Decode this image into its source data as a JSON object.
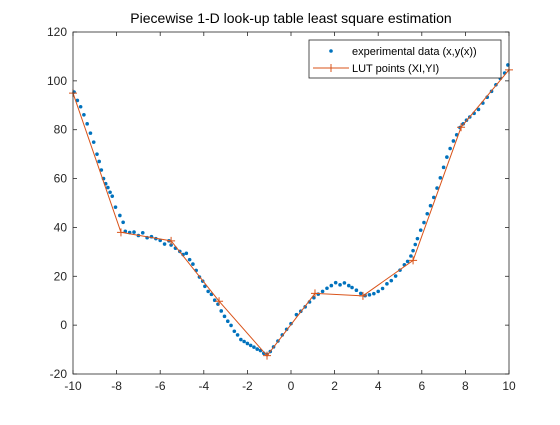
{
  "chart_data": {
    "type": "scatter",
    "title": "Piecewise 1-D look-up table least square estimation",
    "xlabel": "",
    "ylabel": "",
    "xlim": [
      -10,
      10
    ],
    "ylim": [
      -20,
      120
    ],
    "xticks": [
      -10,
      -8,
      -6,
      -4,
      -2,
      0,
      2,
      4,
      6,
      8,
      10
    ],
    "yticks": [
      -20,
      0,
      20,
      40,
      60,
      80,
      100,
      120
    ],
    "grid": false,
    "legend_position": "top-right",
    "series": [
      {
        "name": "experimental data (x,y(x))",
        "type": "scatter",
        "color": "#0072BD",
        "points": [
          [
            -9.95,
            95.4
          ],
          [
            -9.8,
            92.0
          ],
          [
            -9.65,
            89.4
          ],
          [
            -9.5,
            86.1
          ],
          [
            -9.35,
            82.4
          ],
          [
            -9.2,
            78.6
          ],
          [
            -9.05,
            74.9
          ],
          [
            -8.9,
            70.0
          ],
          [
            -8.8,
            67.0
          ],
          [
            -8.7,
            63.5
          ],
          [
            -8.6,
            60.0
          ],
          [
            -8.5,
            57.9
          ],
          [
            -8.4,
            56.3
          ],
          [
            -8.3,
            54.4
          ],
          [
            -8.2,
            52.8
          ],
          [
            -8.05,
            48.3
          ],
          [
            -7.85,
            44.9
          ],
          [
            -7.7,
            42.1
          ],
          [
            -7.6,
            38.4
          ],
          [
            -7.4,
            37.9
          ],
          [
            -7.2,
            38.1
          ],
          [
            -7.0,
            36.7
          ],
          [
            -6.8,
            37.8
          ],
          [
            -6.6,
            35.8
          ],
          [
            -6.4,
            36.2
          ],
          [
            -6.2,
            35.4
          ],
          [
            -6.0,
            34.7
          ],
          [
            -5.8,
            33.2
          ],
          [
            -5.6,
            34.5
          ],
          [
            -5.5,
            32.8
          ],
          [
            -5.3,
            31.5
          ],
          [
            -5.1,
            30.2
          ],
          [
            -4.95,
            28.9
          ],
          [
            -4.8,
            29.4
          ],
          [
            -4.65,
            26.8
          ],
          [
            -4.5,
            25.0
          ],
          [
            -4.35,
            22.4
          ],
          [
            -4.2,
            19.7
          ],
          [
            -4.05,
            18.0
          ],
          [
            -3.95,
            15.9
          ],
          [
            -3.8,
            13.8
          ],
          [
            -3.65,
            12.6
          ],
          [
            -3.5,
            10.2
          ],
          [
            -3.35,
            8.6
          ],
          [
            -3.2,
            5.8
          ],
          [
            -3.05,
            3.6
          ],
          [
            -2.9,
            1.6
          ],
          [
            -2.75,
            -0.1
          ],
          [
            -2.6,
            -2.5
          ],
          [
            -2.45,
            -4.0
          ],
          [
            -2.3,
            -5.9
          ],
          [
            -2.15,
            -6.7
          ],
          [
            -2.0,
            -7.5
          ],
          [
            -1.85,
            -8.3
          ],
          [
            -1.7,
            -9.0
          ],
          [
            -1.55,
            -9.8
          ],
          [
            -1.4,
            -10.4
          ],
          [
            -1.25,
            -11.5
          ],
          [
            -1.1,
            -12.0
          ],
          [
            -0.95,
            -10.8
          ],
          [
            -0.8,
            -8.9
          ],
          [
            -0.6,
            -6.5
          ],
          [
            -0.4,
            -4.0
          ],
          [
            -0.2,
            -1.7
          ],
          [
            0.0,
            0.6
          ],
          [
            0.25,
            4.3
          ],
          [
            0.45,
            5.7
          ],
          [
            0.65,
            7.5
          ],
          [
            0.85,
            9.5
          ],
          [
            1.05,
            11.2
          ],
          [
            1.25,
            12.7
          ],
          [
            1.45,
            13.8
          ],
          [
            1.65,
            15.1
          ],
          [
            1.85,
            16.2
          ],
          [
            2.05,
            17.4
          ],
          [
            2.25,
            16.5
          ],
          [
            2.45,
            17.3
          ],
          [
            2.65,
            16.2
          ],
          [
            2.8,
            15.4
          ],
          [
            3.0,
            14.3
          ],
          [
            3.2,
            13.0
          ],
          [
            3.4,
            12.1
          ],
          [
            3.6,
            12.4
          ],
          [
            3.8,
            12.9
          ],
          [
            4.0,
            13.8
          ],
          [
            4.2,
            15.0
          ],
          [
            4.4,
            16.9
          ],
          [
            4.6,
            18.2
          ],
          [
            4.8,
            20.1
          ],
          [
            5.0,
            22.5
          ],
          [
            5.2,
            24.7
          ],
          [
            5.35,
            26.1
          ],
          [
            5.5,
            28.3
          ],
          [
            5.6,
            30.5
          ],
          [
            5.7,
            33.0
          ],
          [
            5.8,
            35.4
          ],
          [
            5.95,
            38.9
          ],
          [
            6.1,
            42.0
          ],
          [
            6.25,
            45.6
          ],
          [
            6.4,
            48.9
          ],
          [
            6.55,
            52.3
          ],
          [
            6.7,
            56.1
          ],
          [
            6.85,
            60.3
          ],
          [
            7.0,
            64.6
          ],
          [
            7.15,
            68.8
          ],
          [
            7.3,
            72.3
          ],
          [
            7.45,
            75.4
          ],
          [
            7.6,
            77.9
          ],
          [
            7.75,
            80.9
          ],
          [
            7.9,
            82.4
          ],
          [
            8.05,
            83.9
          ],
          [
            8.2,
            85.2
          ],
          [
            8.4,
            86.7
          ],
          [
            8.6,
            88.3
          ],
          [
            8.8,
            90.9
          ],
          [
            9.0,
            93.3
          ],
          [
            9.2,
            95.7
          ],
          [
            9.4,
            98.4
          ],
          [
            9.6,
            101.0
          ],
          [
            9.8,
            103.2
          ],
          [
            9.95,
            106.5
          ]
        ]
      },
      {
        "name": "LUT points (XI,YI)",
        "type": "line",
        "color": "#D95319",
        "points": [
          [
            -10.0,
            95.0
          ],
          [
            -7.8,
            38.0
          ],
          [
            -5.5,
            34.5
          ],
          [
            -3.3,
            9.8
          ],
          [
            -1.1,
            -12.5
          ],
          [
            1.1,
            13.0
          ],
          [
            3.3,
            12.0
          ],
          [
            5.6,
            26.5
          ],
          [
            7.8,
            81.0
          ],
          [
            10.0,
            104.5
          ]
        ]
      }
    ]
  }
}
